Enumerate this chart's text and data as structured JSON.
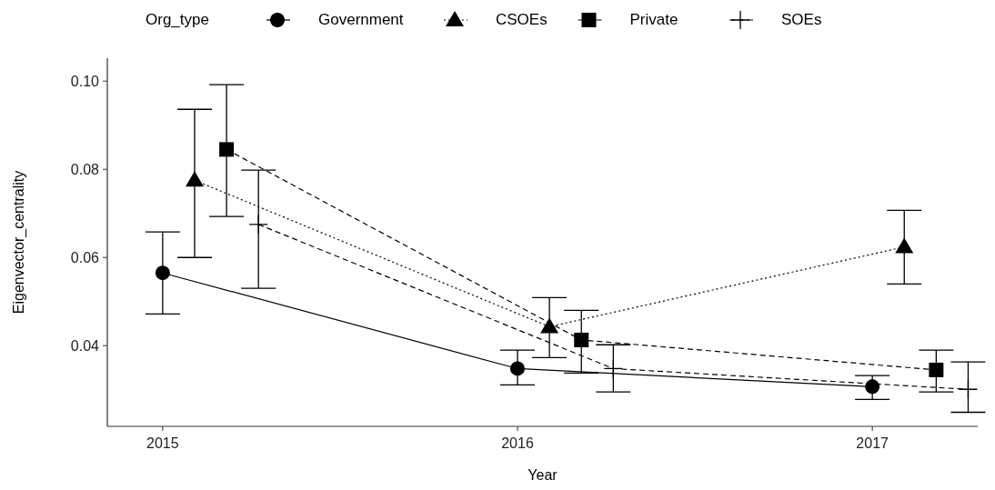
{
  "chart_data": {
    "type": "line",
    "xlabel": "Year",
    "ylabel": "Eigenvector_centrality",
    "legend_title": "Org_type",
    "legend": "top",
    "xlim": [
      2014.844,
      2017.297
    ],
    "xticks": [
      2015,
      2016,
      2017
    ],
    "ylim": [
      0.0217,
      0.1052
    ],
    "yticks": [
      {
        "value": 0.04,
        "label": "0.04"
      },
      {
        "value": 0.06,
        "label": "0.06"
      },
      {
        "value": 0.08,
        "label": "0.08"
      },
      {
        "value": 0.1,
        "label": "0.10"
      }
    ],
    "grid": false,
    "series": [
      {
        "name": "Government",
        "color": "#000000",
        "marker": "circle",
        "line_style": "solid",
        "x": [
          2015,
          2016,
          2017
        ],
        "values": [
          0.0565,
          0.0348,
          0.0307
        ],
        "errors": [
          [
            0.0472,
            0.0658
          ],
          [
            0.0311,
            0.039
          ],
          [
            0.0278,
            0.0332
          ]
        ]
      },
      {
        "name": "CSOEs",
        "color": "#000000",
        "marker": "triangle",
        "line_style": "dotted",
        "x": [
          2015.09,
          2016.09,
          2017.09
        ],
        "values": [
          0.0775,
          0.0443,
          0.0624
        ],
        "errors": [
          [
            0.06,
            0.0936
          ],
          [
            0.0373,
            0.0509
          ],
          [
            0.054,
            0.0707
          ]
        ]
      },
      {
        "name": "Private",
        "color": "#000000",
        "marker": "square",
        "line_style": "dashed",
        "x": [
          2015.18,
          2016.18,
          2017.18
        ],
        "values": [
          0.0845,
          0.0413,
          0.0345
        ],
        "errors": [
          [
            0.0693,
            0.0992
          ],
          [
            0.0338,
            0.048
          ],
          [
            0.0295,
            0.039
          ]
        ]
      },
      {
        "name": "SOEs",
        "color": "#000000",
        "marker": "cross",
        "line_style": "dashed",
        "x": [
          2015.27,
          2016.27,
          2017.27
        ],
        "values": [
          0.0675,
          0.0348,
          0.0301
        ],
        "errors": [
          [
            0.053,
            0.0798
          ],
          [
            0.0295,
            0.0402
          ],
          [
            0.0249,
            0.0363
          ]
        ]
      }
    ]
  }
}
